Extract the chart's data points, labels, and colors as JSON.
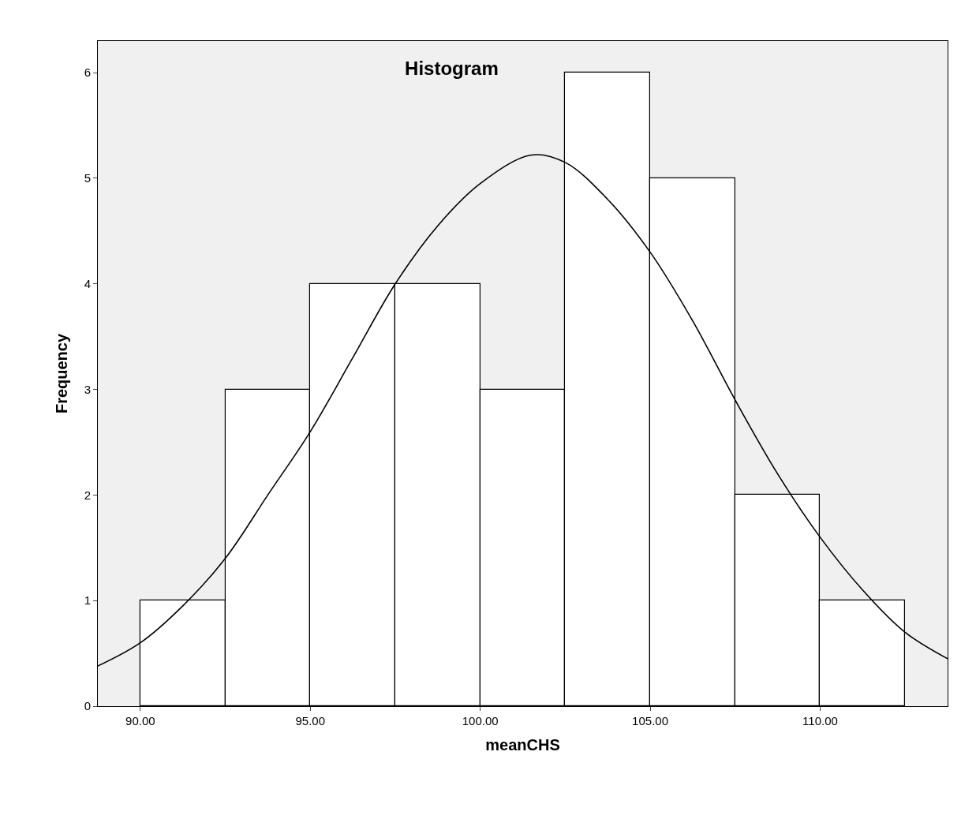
{
  "chart_data": {
    "type": "histogram",
    "title": "Histogram",
    "xlabel": "meanCHS",
    "ylabel": "Frequency",
    "bins": [
      90,
      92.5,
      95,
      97.5,
      100,
      102.5,
      105,
      107.5,
      110,
      112.5
    ],
    "values": [
      1,
      3,
      4,
      4,
      3,
      6,
      5,
      2,
      1
    ],
    "color": "#ffffff",
    "series": [
      {
        "type": "line",
        "color": "#000000",
        "x": [
          88.75,
          90,
          91.25,
          92.5,
          93.75,
          95,
          96.25,
          97.5,
          98.75,
          100,
          101.5,
          102.5,
          103.75,
          105,
          106.25,
          107.5,
          108.75,
          110,
          111.25,
          112.5,
          113.75
        ],
        "values": [
          0.38,
          0.6,
          0.95,
          1.4,
          2.0,
          2.6,
          3.3,
          4.0,
          4.55,
          4.95,
          5.22,
          5.15,
          4.8,
          4.3,
          3.65,
          2.9,
          2.2,
          1.6,
          1.1,
          0.7,
          0.45
        ]
      }
    ],
    "xlim": [
      88.75,
      113.75
    ],
    "xticks": [
      {
        "value": 90,
        "label": "90.00"
      },
      {
        "value": 95,
        "label": "95.00"
      },
      {
        "value": 100,
        "label": "100.00"
      },
      {
        "value": 105,
        "label": "105.00"
      },
      {
        "value": 110,
        "label": "110.00"
      }
    ],
    "ylim": [
      0,
      6.3
    ],
    "yticks": [
      0,
      1,
      2,
      3,
      4,
      5,
      6
    ],
    "grid": false
  }
}
